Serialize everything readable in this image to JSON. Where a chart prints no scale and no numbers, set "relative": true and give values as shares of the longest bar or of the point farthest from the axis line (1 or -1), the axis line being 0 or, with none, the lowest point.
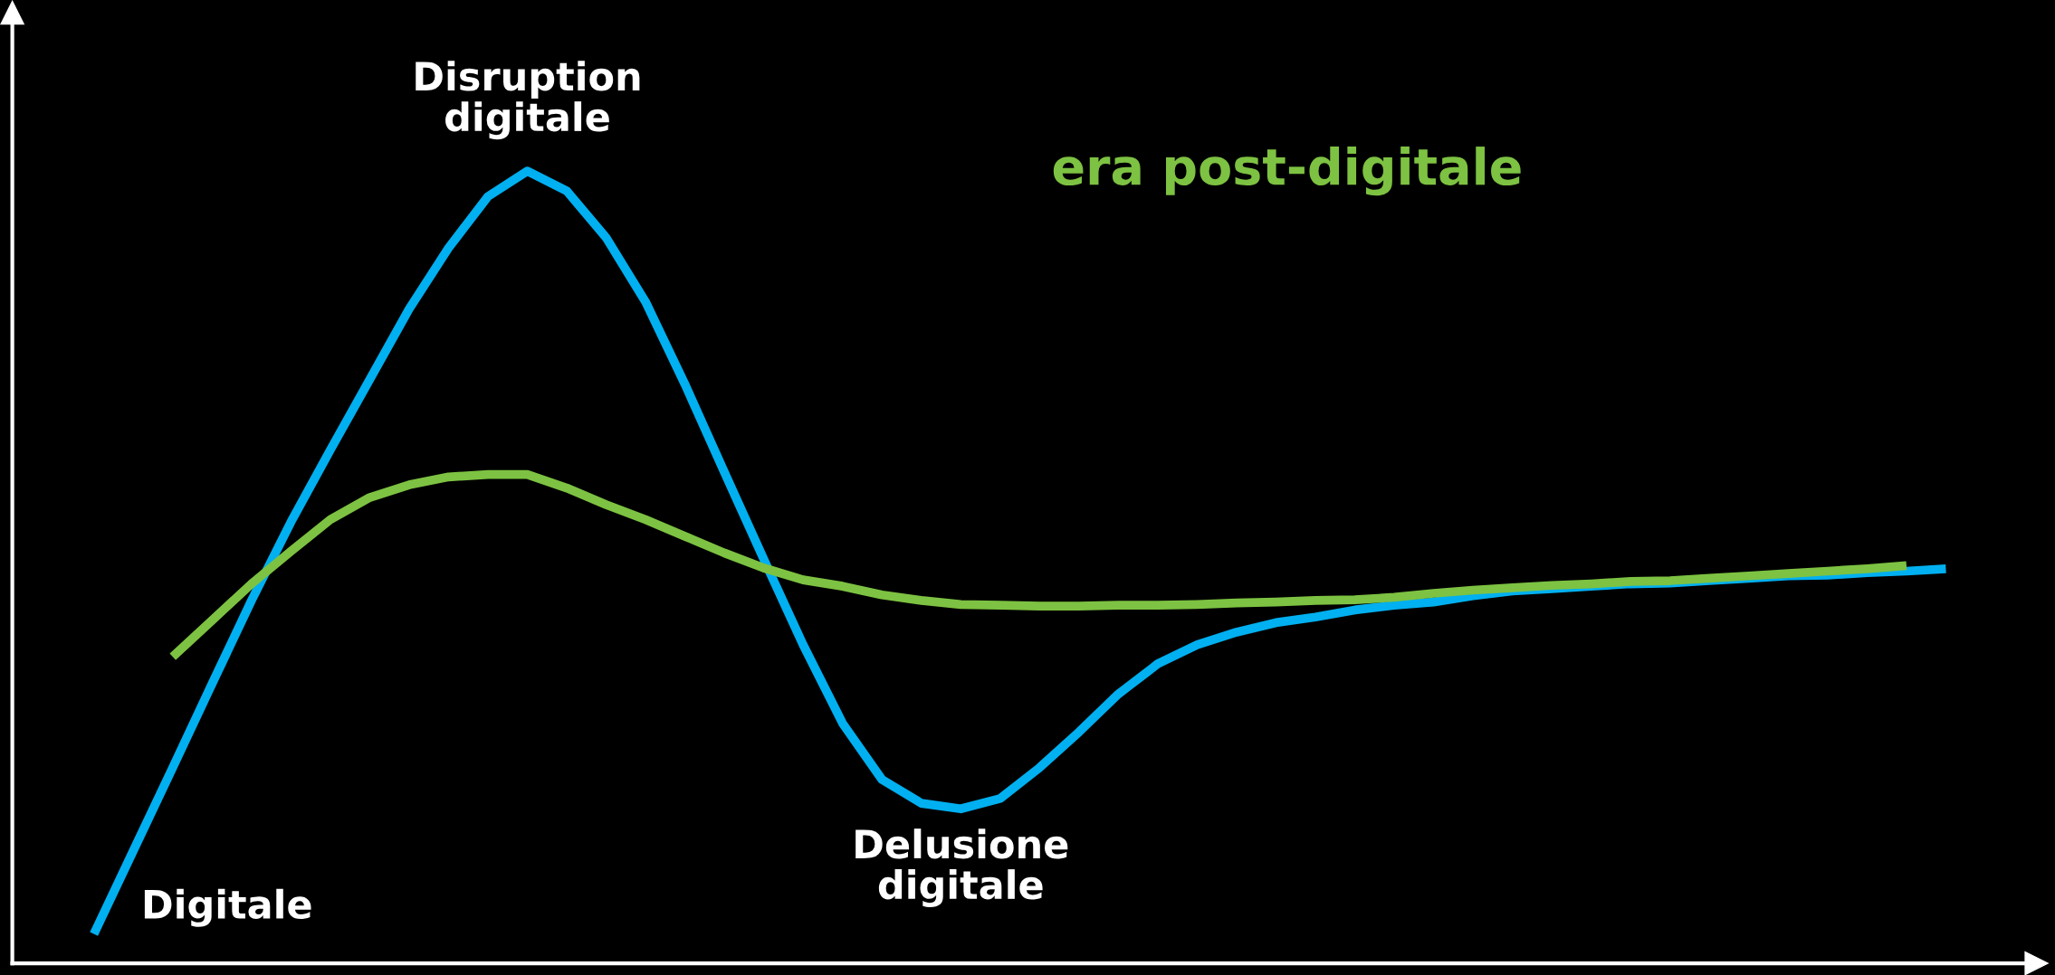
{
  "chart_data": {
    "type": "line",
    "relative": true,
    "marker": "none",
    "line_style": "solid",
    "categories": [
      null,
      null,
      null,
      null,
      null,
      null,
      null,
      null,
      null,
      null,
      null,
      null,
      null,
      null,
      null,
      null,
      null,
      null,
      null,
      null,
      null,
      null,
      null,
      null,
      null,
      null,
      null,
      null,
      null,
      null,
      null,
      null,
      null,
      null,
      null,
      null,
      null,
      null,
      null,
      null,
      null,
      null,
      null,
      null,
      null,
      null,
      null,
      null
    ],
    "series": [
      {
        "color": "#00b0f0",
        "values": [
          0.037,
          0.142,
          0.247,
          0.353,
          0.458,
          0.557,
          0.648,
          0.737,
          0.826,
          0.903,
          0.968,
          1.0,
          0.975,
          0.916,
          0.835,
          0.731,
          0.62,
          0.51,
          0.402,
          0.303,
          0.232,
          0.202,
          0.195,
          0.208,
          0.247,
          0.292,
          0.34,
          0.378,
          0.402,
          0.418,
          0.43,
          0.437,
          0.446,
          0.452,
          0.456,
          0.464,
          0.47,
          0.473,
          0.476,
          0.479,
          0.48,
          0.483,
          0.486,
          0.489,
          0.49,
          0.493,
          0.495,
          0.498
        ]
      },
      {
        "color": "#7dc242",
        "values": [
          null,
          null,
          0.387,
          0.433,
          0.479,
          0.52,
          0.56,
          0.588,
          0.604,
          0.614,
          0.617,
          0.617,
          0.6,
          0.579,
          0.56,
          0.539,
          0.518,
          0.499,
          0.484,
          0.476,
          0.465,
          0.458,
          0.453,
          0.452,
          0.451,
          0.451,
          0.452,
          0.452,
          0.453,
          0.455,
          0.456,
          0.458,
          0.459,
          0.462,
          0.467,
          0.471,
          0.474,
          0.477,
          0.479,
          0.482,
          0.483,
          0.486,
          0.489,
          0.492,
          0.495,
          0.498,
          0.502,
          null
        ]
      }
    ],
    "annotations": [
      "Disruption\ndigitale",
      "era post-digitale",
      "Delusione\ndigitale",
      "Digitale"
    ]
  }
}
